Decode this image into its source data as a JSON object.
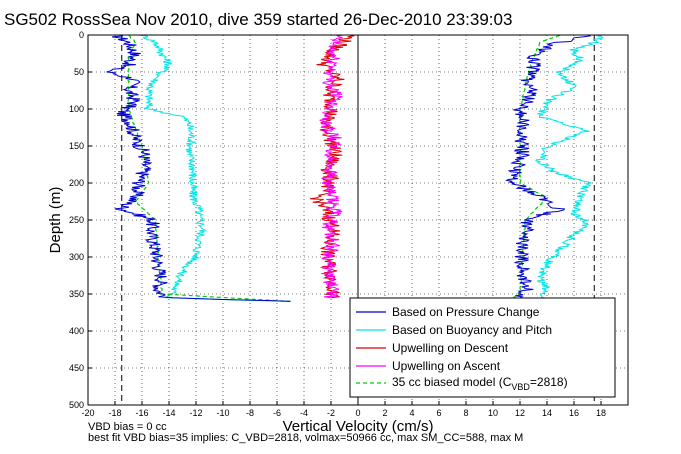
{
  "chart_data": {
    "type": "line",
    "title": "SG502 RossSea Nov 2010, dive 359 started 26-Dec-2010 23:39:03",
    "xlabel": "Vertical Velocity (cm/s)",
    "ylabel": "Depth (m)",
    "xlim": [
      -20,
      20
    ],
    "ylim": [
      500,
      0
    ],
    "y_reversed": true,
    "grid": true,
    "legend_placement": "bottom-right",
    "x_ticks": [
      "-20",
      "-18",
      "-16",
      "-14",
      "-12",
      "-10",
      "-8",
      "-6",
      "-4",
      "-2",
      "0",
      "2",
      "4",
      "6",
      "8",
      "10",
      "12",
      "14",
      "16",
      "18"
    ],
    "y_ticks": [
      "0",
      "50",
      "100",
      "150",
      "200",
      "250",
      "300",
      "350",
      "400",
      "450",
      "500"
    ],
    "reference_lines_x": [
      -17.5,
      0,
      17.5
    ],
    "series": [
      {
        "name": "Based on Pressure Change",
        "color": "#0000cc",
        "descent": {
          "depth": [
            0,
            10,
            25,
            40,
            50,
            60,
            75,
            90,
            105,
            120,
            140,
            160,
            180,
            200,
            220,
            235,
            250,
            270,
            290,
            310,
            330,
            345,
            355,
            360
          ],
          "velocity": [
            -18,
            -17,
            -16.5,
            -17,
            -18.5,
            -16.5,
            -17,
            -16.5,
            -17.5,
            -16.8,
            -16.5,
            -15.8,
            -15.8,
            -16.2,
            -16.5,
            -17.5,
            -15.2,
            -15.3,
            -15,
            -14.8,
            -14.5,
            -14.8,
            -14.2,
            -5
          ]
        },
        "ascent": {
          "depth": [
            360,
            355,
            345,
            330,
            310,
            290,
            270,
            250,
            235,
            220,
            200,
            180,
            160,
            140,
            120,
            100,
            80,
            60,
            45,
            30,
            15,
            5,
            0
          ],
          "velocity": [
            10,
            12,
            12.5,
            12.3,
            12.2,
            12,
            12.5,
            12.5,
            15,
            13.5,
            11.5,
            11.8,
            12.2,
            12,
            12.2,
            12,
            13,
            12.5,
            13,
            13,
            14,
            16,
            17
          ]
        }
      },
      {
        "name": "Based on Buoyancy and Pitch",
        "color": "#00e5e5",
        "descent": {
          "depth": [
            0,
            10,
            25,
            40,
            50,
            60,
            75,
            90,
            100,
            110,
            120,
            140,
            160,
            180,
            200,
            220,
            235,
            245,
            260,
            280,
            300,
            320,
            340,
            355,
            360
          ],
          "velocity": [
            -16,
            -15,
            -14.5,
            -14,
            -14.5,
            -15,
            -15.5,
            -15.5,
            -15.5,
            -13,
            -12.5,
            -12.3,
            -12.5,
            -12.2,
            -12.3,
            -12.2,
            -11.8,
            -11.8,
            -11.5,
            -11.8,
            -12,
            -13,
            -13.5,
            -14,
            -5
          ]
        },
        "ascent": {
          "depth": [
            360,
            355,
            345,
            330,
            310,
            290,
            270,
            255,
            240,
            220,
            200,
            185,
            170,
            150,
            130,
            110,
            90,
            70,
            50,
            35,
            20,
            10,
            0
          ],
          "velocity": [
            12,
            13.5,
            14,
            13.5,
            14,
            15,
            16,
            17,
            16,
            16.5,
            17,
            14.5,
            13.5,
            14,
            17,
            13.5,
            14,
            16,
            15,
            16.5,
            16,
            17.5,
            18
          ]
        }
      },
      {
        "name": "Upwelling on Descent",
        "color": "#dd0000",
        "descent": {
          "depth": [
            0,
            20,
            40,
            60,
            80,
            100,
            120,
            140,
            160,
            180,
            200,
            220,
            240,
            260,
            280,
            300,
            320,
            340,
            355
          ],
          "velocity": [
            -0.5,
            -1.8,
            -2.5,
            -1.5,
            -2.2,
            -1.8,
            -2.5,
            -2,
            -1.7,
            -2.2,
            -2.0,
            -3.0,
            -2.3,
            -1.8,
            -2.1,
            -2.3,
            -2.0,
            -1.8,
            -2.0
          ]
        }
      },
      {
        "name": "Upwelling on Ascent",
        "color": "#ff00ff",
        "ascent": {
          "depth": [
            0,
            20,
            40,
            60,
            80,
            100,
            120,
            140,
            160,
            180,
            200,
            220,
            240,
            260,
            280,
            300,
            320,
            340,
            355
          ],
          "velocity": [
            -1.5,
            -2.0,
            -1.8,
            -2.2,
            -1.6,
            -2.0,
            -2.4,
            -1.7,
            -2.1,
            -1.9,
            -2.3,
            -2.0,
            -1.7,
            -2.2,
            -1.8,
            -2.1,
            -2.3,
            -1.9,
            -2.0
          ]
        }
      },
      {
        "name": "35 cc biased model (C_VBD=2818)",
        "color": "#00cc00",
        "style": "dashed",
        "descent": {
          "depth": [
            0,
            10,
            30,
            60,
            100,
            150,
            200,
            225,
            250,
            300,
            350,
            360
          ],
          "velocity": [
            -17,
            -16.5,
            -17,
            -17,
            -17,
            -16,
            -15.5,
            -16.5,
            -15,
            -14.8,
            -14.5,
            -5
          ]
        },
        "ascent": {
          "depth": [
            360,
            350,
            300,
            250,
            220,
            200,
            150,
            100,
            60,
            30,
            10,
            0
          ],
          "velocity": [
            11,
            12,
            12.2,
            12.4,
            14,
            12,
            12,
            12,
            12.5,
            13,
            13.5,
            15
          ]
        }
      }
    ],
    "annotations": [
      "VBD bias = 0 cc",
      "best fit VBD bias=35 implies: C_VBD=2818, volmax=50966 cc, max SM_CC=588, max M"
    ]
  },
  "legend": {
    "entries": [
      {
        "text": "Based on Pressure Change",
        "color": "#0000cc",
        "dash": ""
      },
      {
        "text": "Based on Buoyancy and Pitch",
        "color": "#00e5e5",
        "dash": ""
      },
      {
        "text": "Upwelling on Descent",
        "color": "#dd0000",
        "dash": ""
      },
      {
        "text": "Upwelling on Ascent",
        "color": "#ff00ff",
        "dash": ""
      }
    ],
    "model_entry": {
      "prefix": "35 cc biased model (C",
      "subscript": "VBD",
      "suffix": "=2818)",
      "color": "#00cc00"
    }
  }
}
